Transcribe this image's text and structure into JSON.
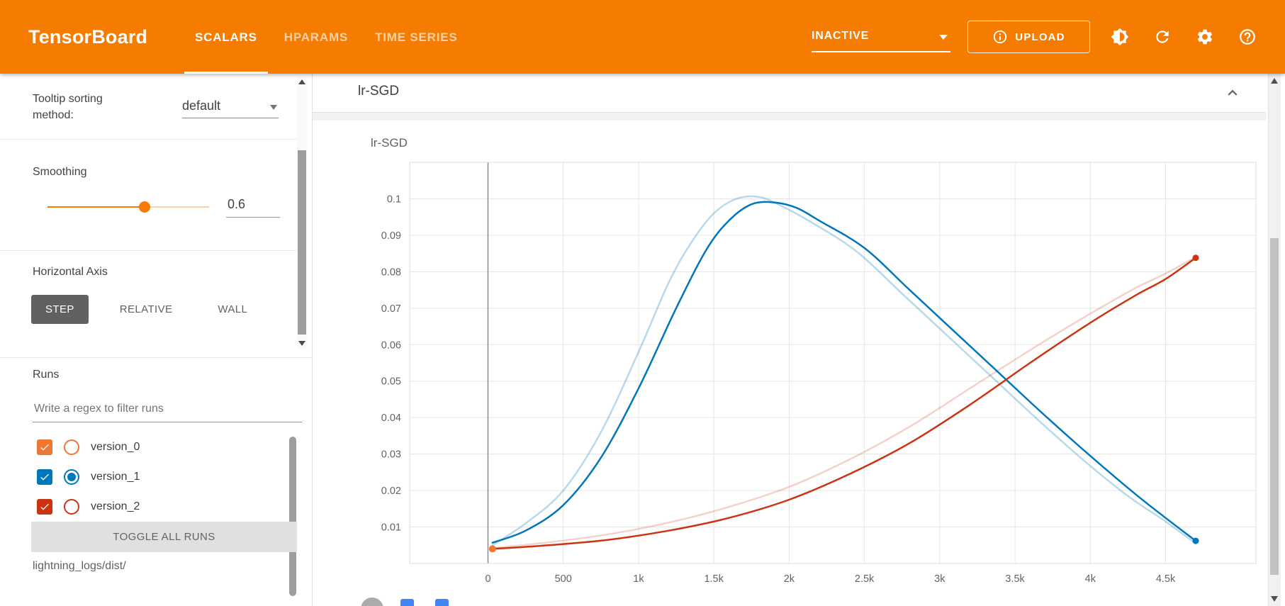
{
  "header": {
    "brand": "TensorBoard",
    "tabs": [
      {
        "label": "SCALARS",
        "active": true
      },
      {
        "label": "HPARAMS",
        "active": false
      },
      {
        "label": "TIME SERIES",
        "active": false
      }
    ],
    "status": "INACTIVE",
    "upload_label": "UPLOAD",
    "accent_color": "#f57c00"
  },
  "sidebar": {
    "tooltip_sorting_label": "Tooltip sorting method:",
    "tooltip_sorting_value": "default",
    "smoothing_label": "Smoothing",
    "smoothing_value": "0.6",
    "smoothing_percent": 60,
    "horizontal_axis_label": "Horizontal Axis",
    "axis_options": [
      {
        "label": "STEP",
        "selected": true
      },
      {
        "label": "RELATIVE",
        "selected": false
      },
      {
        "label": "WALL",
        "selected": false
      }
    ],
    "runs_label": "Runs",
    "filter_placeholder": "Write a regex to filter runs",
    "runs": [
      {
        "name": "version_0",
        "color": "#ee7733",
        "checked": true,
        "radio_selected": false
      },
      {
        "name": "version_1",
        "color": "#0077bb",
        "checked": true,
        "radio_selected": true
      },
      {
        "name": "version_2",
        "color": "#cc3311",
        "checked": true,
        "radio_selected": false
      }
    ],
    "toggle_all_label": "TOGGLE ALL RUNS",
    "logdir": "lightning_logs/dist/"
  },
  "main": {
    "group_title": "lr-SGD"
  },
  "chart_data": {
    "type": "line",
    "title": "lr-SGD",
    "xlim": [
      -520,
      5100
    ],
    "ylim": [
      0,
      0.11
    ],
    "grid": true,
    "x_ticks": [
      {
        "v": 0,
        "label": "0"
      },
      {
        "v": 500,
        "label": "500"
      },
      {
        "v": 1000,
        "label": "1k"
      },
      {
        "v": 1500,
        "label": "1.5k"
      },
      {
        "v": 2000,
        "label": "2k"
      },
      {
        "v": 2500,
        "label": "2.5k"
      },
      {
        "v": 3000,
        "label": "3k"
      },
      {
        "v": 3500,
        "label": "3.5k"
      },
      {
        "v": 4000,
        "label": "4k"
      },
      {
        "v": 4500,
        "label": "4.5k"
      }
    ],
    "y_ticks": [
      {
        "v": 0.01,
        "label": "0.01"
      },
      {
        "v": 0.02,
        "label": "0.02"
      },
      {
        "v": 0.03,
        "label": "0.03"
      },
      {
        "v": 0.04,
        "label": "0.04"
      },
      {
        "v": 0.05,
        "label": "0.05"
      },
      {
        "v": 0.06,
        "label": "0.06"
      },
      {
        "v": 0.07,
        "label": "0.07"
      },
      {
        "v": 0.08,
        "label": "0.08"
      },
      {
        "v": 0.09,
        "label": "0.09"
      },
      {
        "v": 0.1,
        "label": "0.1"
      }
    ],
    "series": [
      {
        "name": "version_1 unsmoothed",
        "color": "#0077bb",
        "opacity": 0.28,
        "width": 2.5,
        "points": [
          [
            30,
            0.005
          ],
          [
            250,
            0.011
          ],
          [
            500,
            0.02
          ],
          [
            750,
            0.036
          ],
          [
            1000,
            0.058
          ],
          [
            1200,
            0.077
          ],
          [
            1350,
            0.088
          ],
          [
            1500,
            0.096
          ],
          [
            1650,
            0.1
          ],
          [
            1800,
            0.1005
          ],
          [
            1950,
            0.098
          ],
          [
            2150,
            0.0935
          ],
          [
            2450,
            0.0855
          ],
          [
            2750,
            0.074
          ],
          [
            3050,
            0.0625
          ],
          [
            3350,
            0.051
          ],
          [
            3650,
            0.0395
          ],
          [
            3950,
            0.0285
          ],
          [
            4250,
            0.0185
          ],
          [
            4500,
            0.0115
          ],
          [
            4700,
            0.0055
          ]
        ]
      },
      {
        "name": "version_2 unsmoothed",
        "color": "#cc3311",
        "opacity": 0.22,
        "width": 2.5,
        "points": [
          [
            30,
            0.0042
          ],
          [
            400,
            0.0058
          ],
          [
            800,
            0.008
          ],
          [
            1200,
            0.0112
          ],
          [
            1600,
            0.0155
          ],
          [
            2000,
            0.021
          ],
          [
            2400,
            0.0285
          ],
          [
            2800,
            0.0375
          ],
          [
            3200,
            0.048
          ],
          [
            3600,
            0.0585
          ],
          [
            4000,
            0.0685
          ],
          [
            4300,
            0.0755
          ],
          [
            4500,
            0.0795
          ],
          [
            4700,
            0.084
          ]
        ]
      },
      {
        "name": "version_1 smoothed",
        "color": "#0077bb",
        "opacity": 1,
        "width": 2.5,
        "end_dot": true,
        "points": [
          [
            30,
            0.0057
          ],
          [
            250,
            0.009
          ],
          [
            500,
            0.016
          ],
          [
            750,
            0.029
          ],
          [
            1000,
            0.048
          ],
          [
            1250,
            0.07
          ],
          [
            1450,
            0.086
          ],
          [
            1600,
            0.094
          ],
          [
            1750,
            0.0985
          ],
          [
            1900,
            0.099
          ],
          [
            2050,
            0.0975
          ],
          [
            2200,
            0.094
          ],
          [
            2500,
            0.0865
          ],
          [
            2800,
            0.075
          ],
          [
            3100,
            0.0635
          ],
          [
            3400,
            0.052
          ],
          [
            3700,
            0.0405
          ],
          [
            4000,
            0.0295
          ],
          [
            4300,
            0.019
          ],
          [
            4500,
            0.0125
          ],
          [
            4700,
            0.0062
          ]
        ]
      },
      {
        "name": "version_2 smoothed",
        "color": "#cc3311",
        "opacity": 1,
        "width": 2.5,
        "end_dot": true,
        "points": [
          [
            30,
            0.004
          ],
          [
            400,
            0.005
          ],
          [
            800,
            0.0065
          ],
          [
            1200,
            0.009
          ],
          [
            1600,
            0.0125
          ],
          [
            2000,
            0.0175
          ],
          [
            2400,
            0.0245
          ],
          [
            2800,
            0.033
          ],
          [
            3200,
            0.0435
          ],
          [
            3600,
            0.055
          ],
          [
            4000,
            0.066
          ],
          [
            4300,
            0.0735
          ],
          [
            4500,
            0.078
          ],
          [
            4700,
            0.0838
          ]
        ]
      },
      {
        "name": "version_0",
        "color": "#ee7733",
        "opacity": 1,
        "width": 2.5,
        "start_dot": true,
        "points": [
          [
            30,
            0.004
          ]
        ]
      }
    ]
  }
}
